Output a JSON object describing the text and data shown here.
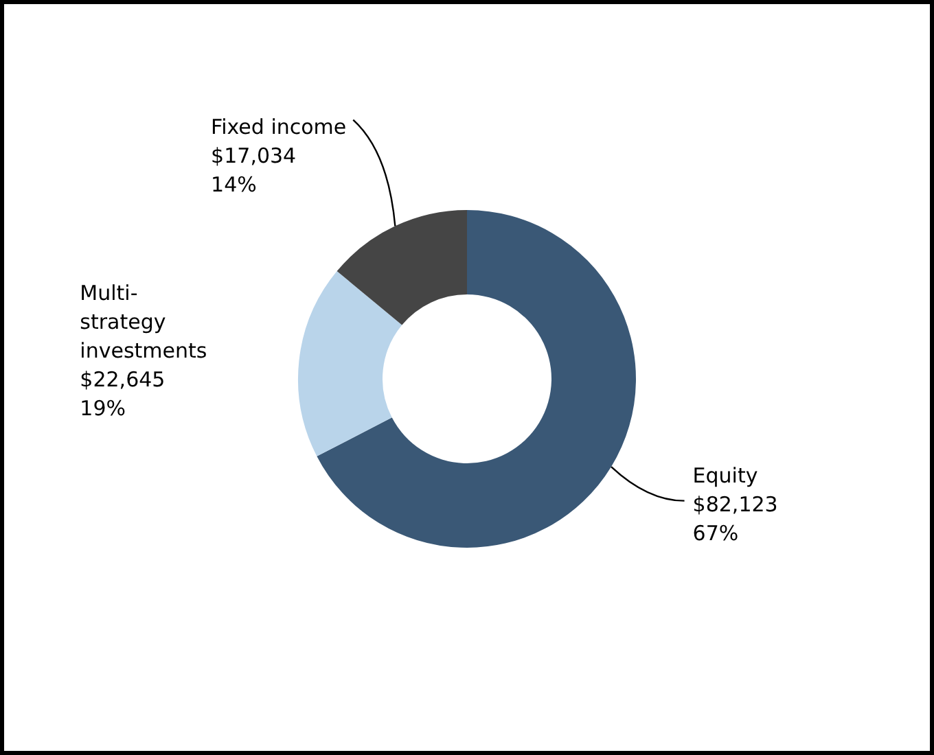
{
  "chart_data": {
    "type": "donut",
    "categories": [
      "Equity",
      "Multi-strategy investments",
      "Fixed income"
    ],
    "values": [
      82123,
      22645,
      17034
    ],
    "colors": [
      "#3a5876",
      "#b9d4ea",
      "#454545"
    ],
    "value_labels": [
      "$82,123\n67%",
      "$22,645\n19%",
      "$17,034\n14%"
    ],
    "legend": false
  }
}
